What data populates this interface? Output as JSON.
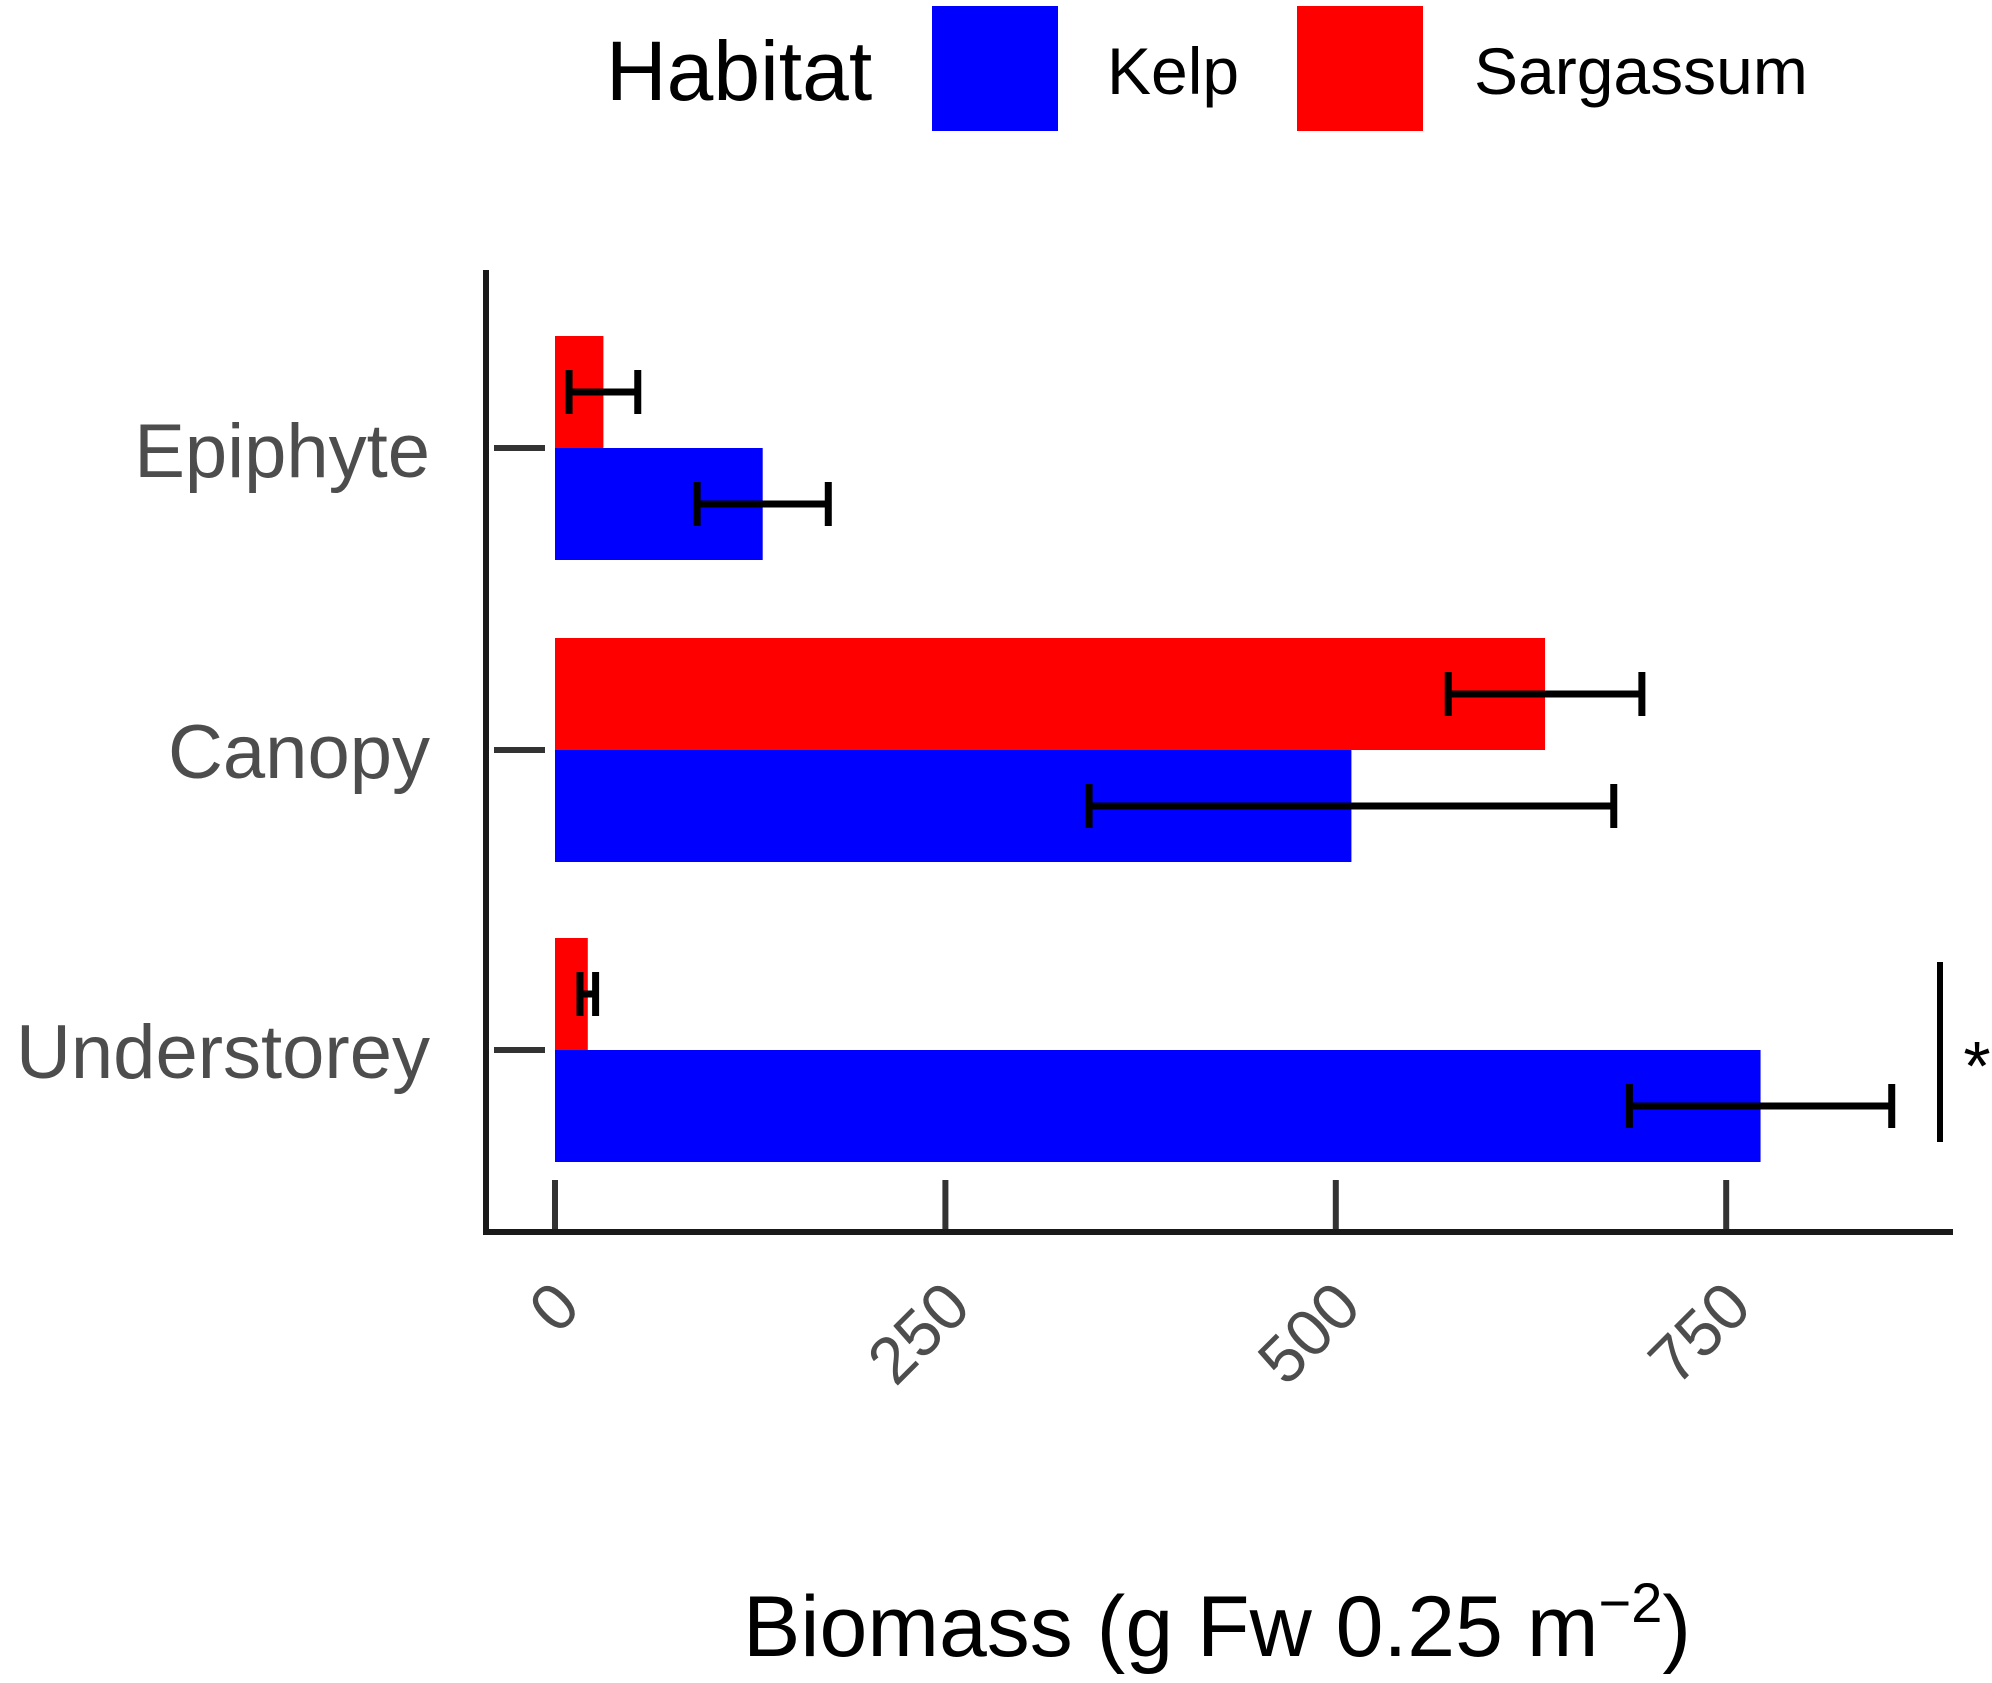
{
  "chart_data": {
    "type": "bar",
    "orientation": "horizontal",
    "categories": [
      "Epiphyte",
      "Canopy",
      "Understorey"
    ],
    "series": [
      {
        "name": "Kelp",
        "color": "#0000ff",
        "values": [
          133,
          510,
          772
        ],
        "error": [
          42,
          168,
          84
        ]
      },
      {
        "name": "Sargassum",
        "color": "#ff0000",
        "values": [
          31,
          634,
          21
        ],
        "error": [
          22,
          62,
          5
        ]
      }
    ],
    "xlim": [
      0,
      900
    ],
    "xticks": [
      0,
      250,
      500,
      750
    ],
    "xlabel_main": "Biomass (g Fw 0.25 m",
    "xlabel_sup": "−2",
    "xlabel_close": ")",
    "legend": {
      "title": "Habitat",
      "position": "top"
    },
    "annotations": [
      {
        "category": "Understorey",
        "text": "*"
      }
    ],
    "grid": false
  }
}
